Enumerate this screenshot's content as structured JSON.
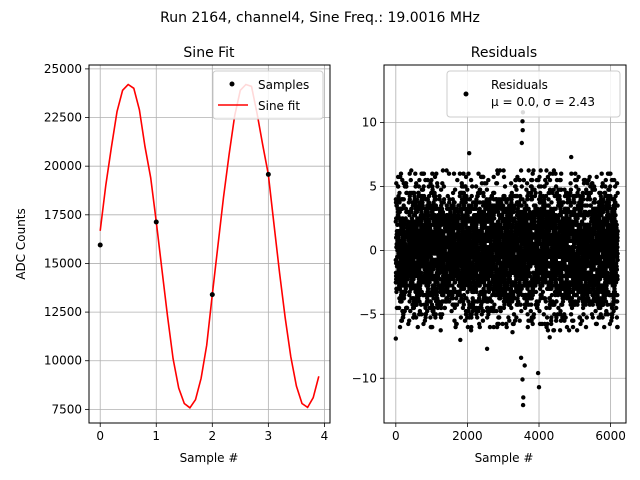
{
  "suptitle": "Run 2164, channel4, Sine Freq.: 19.0016 MHz",
  "colors": {
    "samples": "#000000",
    "fit": "#ff0000",
    "grid": "#b0b0b0",
    "axes": "#000000"
  },
  "chart_data": [
    {
      "type": "line",
      "title": "Sine Fit",
      "xlabel": "Sample #",
      "ylabel": "ADC Counts",
      "xlim": [
        -0.2,
        4.1
      ],
      "ylim": [
        6800,
        25200
      ],
      "xticks": [
        0,
        1,
        2,
        3,
        4
      ],
      "yticks": [
        7500,
        10000,
        12500,
        15000,
        17500,
        20000,
        22500,
        25000
      ],
      "grid": true,
      "legend_position": "top-right",
      "series": [
        {
          "name": "Samples",
          "style": "scatter",
          "x": [
            0,
            1,
            2,
            3
          ],
          "y": [
            15950,
            17130,
            13400,
            19580
          ]
        },
        {
          "name": "Sine fit",
          "style": "line",
          "sine_params": {
            "offset": 15900,
            "amplitude": 8350,
            "frequency_per_sample": 0.4772,
            "phase": 0.0939
          },
          "x": [
            0,
            0.1,
            0.2,
            0.3,
            0.4,
            0.5,
            0.6,
            0.7,
            0.8,
            0.9,
            1.0,
            1.1,
            1.2,
            1.3,
            1.4,
            1.5,
            1.6,
            1.7,
            1.8,
            1.9,
            2.0,
            2.1,
            2.2,
            2.3,
            2.4,
            2.5,
            2.6,
            2.7,
            2.8,
            2.9,
            3.0,
            3.1,
            3.2,
            3.3,
            3.4,
            3.5,
            3.6,
            3.7,
            3.8,
            3.9
          ],
          "y": [
            16680,
            19020,
            20970,
            22800,
            23900,
            24200,
            24000,
            22900,
            21000,
            19400,
            17130,
            14700,
            12300,
            10100,
            8600,
            7800,
            7580,
            8000,
            9100,
            10800,
            13400,
            15900,
            18400,
            20600,
            22600,
            23900,
            24200,
            24100,
            22700,
            21100,
            19580,
            17000,
            14500,
            12200,
            10200,
            8700,
            7800,
            7600,
            8100,
            9200
          ]
        }
      ]
    },
    {
      "type": "scatter",
      "title": "Residuals",
      "xlabel": "Sample #",
      "ylabel": "",
      "xlim": [
        -330,
        6430
      ],
      "ylim": [
        -13.5,
        14.5
      ],
      "xticks": [
        0,
        2000,
        4000,
        6000
      ],
      "yticks": [
        -10,
        -5,
        0,
        5,
        10
      ],
      "grid": true,
      "legend_position": "top-right",
      "legend_label": "Residuals",
      "legend_stats": "μ = 0.0, σ = 2.43",
      "n_points": 6200,
      "mean": 0.0,
      "sigma": 2.43,
      "outliers": [
        {
          "x": 3550,
          "y": 10.8
        },
        {
          "x": 3540,
          "y": 10.1
        },
        {
          "x": 3545,
          "y": 9.4
        },
        {
          "x": 3520,
          "y": 8.4
        },
        {
          "x": 2050,
          "y": 7.6
        },
        {
          "x": 4900,
          "y": 7.3
        },
        {
          "x": 3560,
          "y": -11.5
        },
        {
          "x": 3555,
          "y": -12.1
        },
        {
          "x": 4000,
          "y": -10.7
        },
        {
          "x": 3540,
          "y": -10.1
        },
        {
          "x": 3975,
          "y": -9.6
        },
        {
          "x": 3600,
          "y": -9.0
        },
        {
          "x": 3500,
          "y": -8.4
        },
        {
          "x": 1800,
          "y": -7.0
        },
        {
          "x": 2550,
          "y": -7.7
        },
        {
          "x": 4300,
          "y": -6.8
        },
        {
          "x": 0,
          "y": -6.9
        },
        {
          "x": 3260,
          "y": -6.4
        }
      ]
    }
  ]
}
